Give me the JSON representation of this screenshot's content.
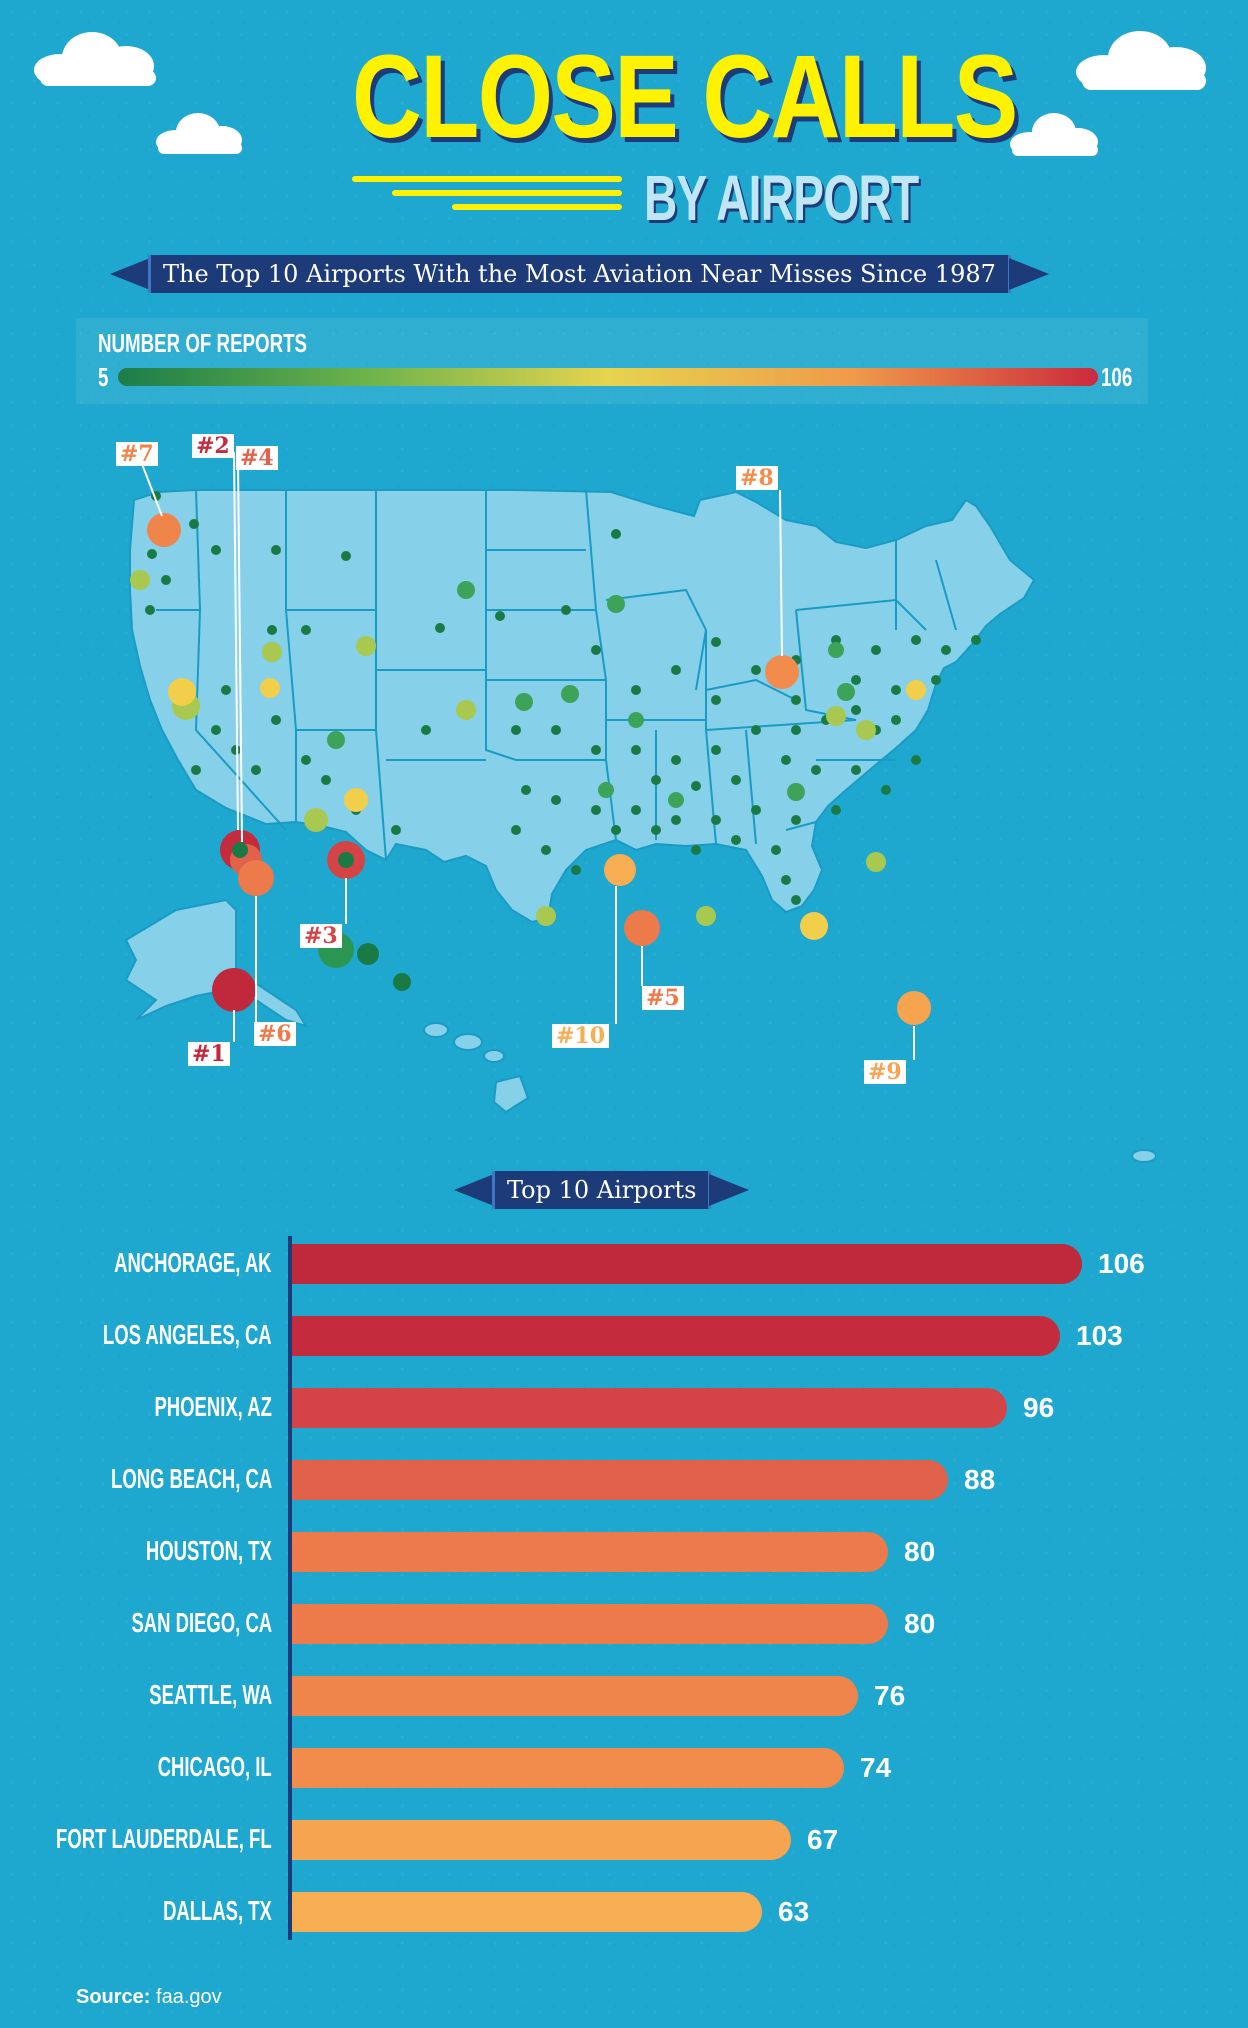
{
  "title": {
    "line1": "CLOSE CALLS",
    "line2": "BY AIRPORT"
  },
  "subtitle": "The Top 10 Airports With the Most Aviation Near Misses Since 1987",
  "legend": {
    "title": "NUMBER OF REPORTS",
    "min": "5",
    "max": "106"
  },
  "map_ranks": [
    "#1",
    "#2",
    "#3",
    "#4",
    "#5",
    "#6",
    "#7",
    "#8",
    "#9",
    "#10"
  ],
  "bar_section_title": "Top 10 Airports",
  "source": {
    "label": "Source:",
    "value": "faa.gov"
  },
  "colors": {
    "background": "#1fa8cf",
    "navy": "#1d3b78",
    "title_yellow": "#fff200",
    "map_land": "#86d0ea",
    "map_border": "#1a9bc4"
  },
  "chart_data": {
    "type": "bar",
    "orientation": "horizontal",
    "categories": [
      "ANCHORAGE, AK",
      "LOS ANGELES, CA",
      "PHOENIX, AZ",
      "LONG BEACH, CA",
      "HOUSTON, TX",
      "SAN DIEGO, CA",
      "SEATTLE, WA",
      "CHICAGO, IL",
      "FORT LAUDERDALE, FL",
      "DALLAS, TX"
    ],
    "values": [
      106,
      103,
      96,
      88,
      80,
      80,
      76,
      74,
      67,
      63
    ],
    "bar_colors": [
      "#c0283c",
      "#c42b3d",
      "#d44446",
      "#e2614a",
      "#ec7a4a",
      "#ec7a4a",
      "#f0854b",
      "#f28c4c",
      "#f6a450",
      "#f7ad52"
    ],
    "title": "Top 10 Airports",
    "xlim": [
      0,
      106
    ]
  }
}
